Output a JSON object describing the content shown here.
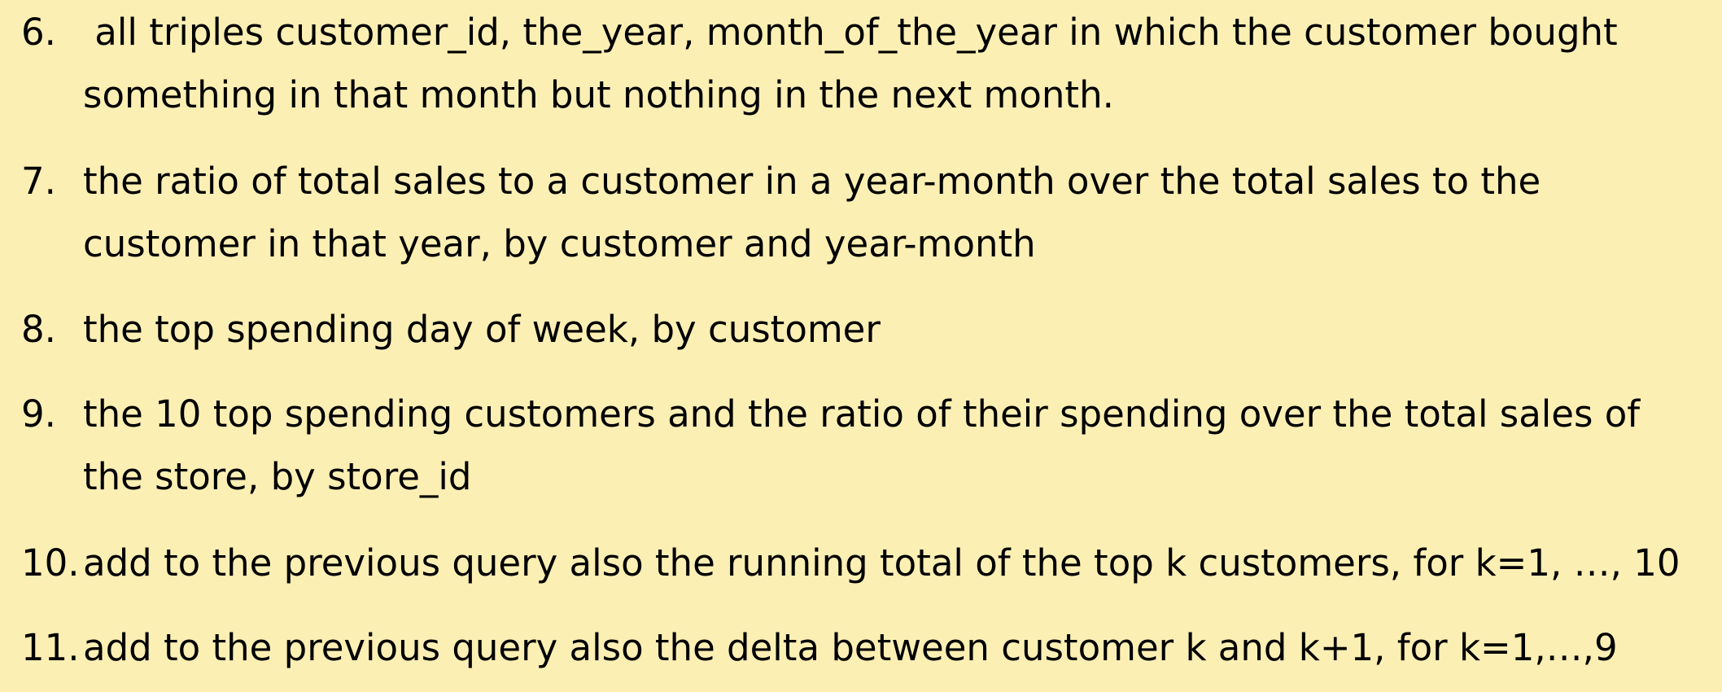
{
  "items": [
    {
      "number": "6.",
      "lines": [
        " all triples customer_id, the_year, month_of_the_year in which the customer bought",
        "something in that month but nothing in the next month."
      ]
    },
    {
      "number": "7.",
      "lines": [
        "the ratio of total sales to a customer in a year-month over the total sales to the",
        "customer in that year, by customer and year-month"
      ]
    },
    {
      "number": "8.",
      "lines": [
        "the top spending day of week, by customer"
      ]
    },
    {
      "number": "9.",
      "lines": [
        "the 10 top spending customers and the ratio of their spending over the total sales of",
        "the store, by store_id"
      ]
    },
    {
      "number": "10.",
      "lines": [
        "add to the previous query also the running total of the top k customers, for k=1, …, 10"
      ]
    },
    {
      "number": "11.",
      "lines": [
        "add to the previous query also the delta between customer k and k+1, for k=1,…,9"
      ]
    }
  ]
}
